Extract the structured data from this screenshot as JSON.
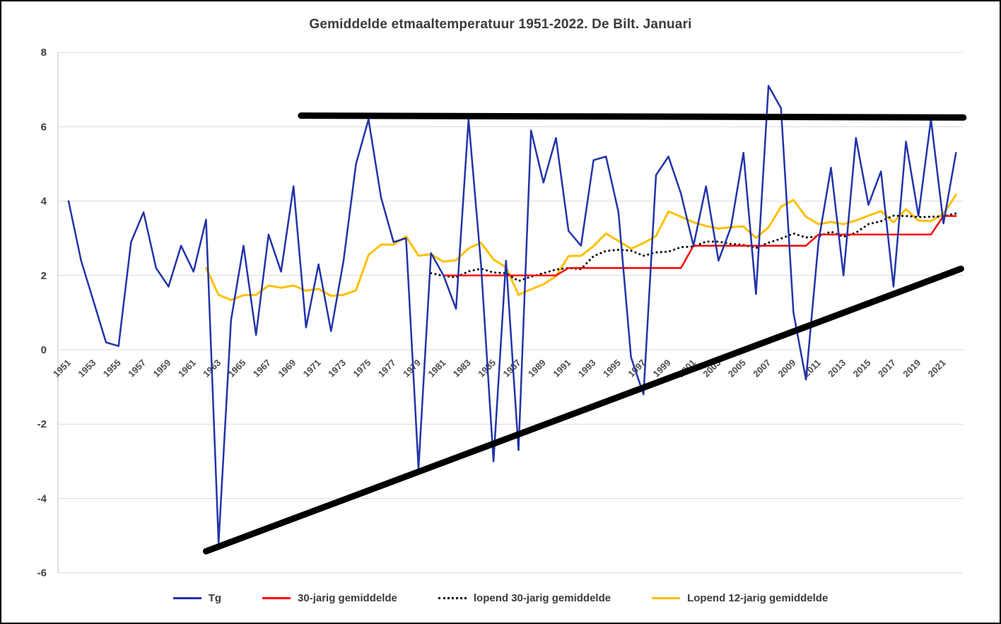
{
  "frame": {
    "background": "#ffffff",
    "border_color": "#000000"
  },
  "colors": {
    "grid": "#d9d9d9",
    "axis_line": "#bfbfbf",
    "axis_text": "#404040",
    "title_text": "#3b3b3b",
    "tg_blue": "#2233aa",
    "normal_red": "#ff0000",
    "running30_black": "#000000",
    "running12_gold": "#ffc000",
    "envelope_black": "#000000"
  },
  "chart_data": {
    "type": "line",
    "title": "Gemiddelde etmaaltemperatuur 1951-2022. De Bilt. Januari",
    "xlabel": "",
    "ylabel": "",
    "x_range": [
      1951,
      2022
    ],
    "ylim": [
      -6,
      8
    ],
    "grid": true,
    "legend_position": "bottom",
    "y_ticks": [
      8,
      6,
      4,
      2,
      0,
      -2,
      -4,
      -6
    ],
    "x_ticks": [
      "1951",
      "1953",
      "1955",
      "1957",
      "1959",
      "1961",
      "1963",
      "1965",
      "1967",
      "1969",
      "1971",
      "1973",
      "1975",
      "1977",
      "1979",
      "1981",
      "1983",
      "1985",
      "1987",
      "1989",
      "1991",
      "1993",
      "1995",
      "1997",
      "1999",
      "2001",
      "2003",
      "2005",
      "2007",
      "2009",
      "2011",
      "2013",
      "2015",
      "2017",
      "2019",
      "2021"
    ],
    "series": [
      {
        "name": "Tg",
        "color": "#2233aa",
        "style": "solid",
        "width": 2.5,
        "start_year": 1951,
        "values": [
          4.0,
          2.4,
          1.3,
          0.2,
          0.1,
          2.9,
          3.7,
          2.2,
          1.7,
          2.8,
          2.1,
          3.5,
          -5.2,
          0.8,
          2.8,
          0.4,
          3.1,
          2.1,
          4.4,
          0.6,
          2.3,
          0.5,
          2.4,
          5.0,
          6.2,
          4.1,
          2.9,
          3.0,
          -3.2,
          2.6,
          2.0,
          1.1,
          6.2,
          2.3,
          -3.0,
          2.4,
          -2.7,
          5.9,
          4.5,
          5.7,
          3.2,
          2.8,
          5.1,
          5.2,
          3.7,
          -0.2,
          -1.2,
          4.7,
          5.2,
          4.2,
          2.8,
          4.4,
          2.4,
          3.3,
          5.3,
          1.5,
          7.1,
          6.5,
          1.0,
          -0.8,
          2.9,
          4.9,
          2.0,
          5.7,
          3.9,
          4.8,
          1.7,
          5.6,
          3.6,
          6.2,
          3.4,
          5.3
        ]
      },
      {
        "name": "30-jarig gemiddelde",
        "color": "#ff0000",
        "style": "solid",
        "width": 2.5,
        "start_year": 1981,
        "values": [
          2.0,
          2.0,
          2.0,
          2.0,
          2.0,
          2.0,
          2.0,
          2.0,
          2.0,
          2.0,
          2.2,
          2.2,
          2.2,
          2.2,
          2.2,
          2.2,
          2.2,
          2.2,
          2.2,
          2.2,
          2.8,
          2.8,
          2.8,
          2.8,
          2.8,
          2.8,
          2.8,
          2.8,
          2.8,
          2.8,
          3.1,
          3.1,
          3.1,
          3.1,
          3.1,
          3.1,
          3.1,
          3.1,
          3.1,
          3.1,
          3.6,
          3.6
        ]
      },
      {
        "name": "lopend 30-jarig gemiddelde",
        "color": "#000000",
        "style": "dotted",
        "width": 3,
        "start_year": 1980,
        "values": [
          2.06,
          1.99,
          1.95,
          2.11,
          2.18,
          2.08,
          2.06,
          1.85,
          1.97,
          2.06,
          2.16,
          2.2,
          2.17,
          2.52,
          2.66,
          2.69,
          2.67,
          2.53,
          2.62,
          2.64,
          2.76,
          2.78,
          2.91,
          2.91,
          2.85,
          2.82,
          2.74,
          2.88,
          2.99,
          3.13,
          3.02,
          3.05,
          3.18,
          3.04,
          3.15,
          3.38,
          3.46,
          3.61,
          3.6,
          3.57,
          3.58,
          3.59,
          3.67
        ]
      },
      {
        "name": "Lopend 12-jarig gemiddelde",
        "color": "#ffc000",
        "style": "solid",
        "width": 3,
        "start_year": 1962,
        "values": [
          2.2,
          1.48,
          1.34,
          1.47,
          1.48,
          1.73,
          1.67,
          1.73,
          1.59,
          1.64,
          1.45,
          1.48,
          1.6,
          2.55,
          2.83,
          2.83,
          3.05,
          2.53,
          2.57,
          2.37,
          2.41,
          2.73,
          2.88,
          2.43,
          2.22,
          1.48,
          1.63,
          1.76,
          1.98,
          2.52,
          2.53,
          2.79,
          3.13,
          2.93,
          2.72,
          2.87,
          3.06,
          3.72,
          3.58,
          3.43,
          3.33,
          3.26,
          3.3,
          3.32,
          3.01,
          3.29,
          3.85,
          4.03,
          3.58,
          3.38,
          3.44,
          3.38,
          3.48,
          3.61,
          3.73,
          3.43,
          3.78,
          3.48,
          3.46,
          3.66,
          4.17
        ]
      }
    ],
    "annotations": [
      {
        "name": "upper-envelope-line",
        "color": "#000000",
        "width": 9,
        "x1": 1969.6,
        "y1": 6.3,
        "x2": 2022.6,
        "y2": 6.25
      },
      {
        "name": "lower-envelope-line",
        "color": "#000000",
        "width": 9,
        "x1": 1962.0,
        "y1": -5.42,
        "x2": 2022.4,
        "y2": 2.18
      }
    ]
  }
}
